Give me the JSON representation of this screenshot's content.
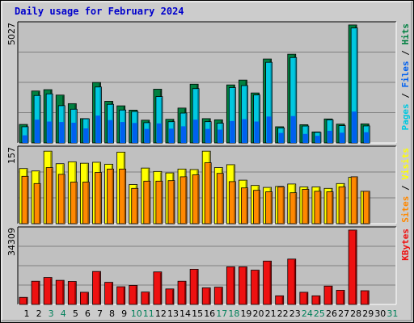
{
  "chart_data": {
    "type": "bar",
    "title": "Daily usage for February 2024",
    "categories": [
      "1",
      "2",
      "3",
      "4",
      "5",
      "6",
      "7",
      "8",
      "9",
      "10",
      "11",
      "12",
      "13",
      "14",
      "15",
      "16",
      "17",
      "18",
      "19",
      "20",
      "21",
      "22",
      "23",
      "24",
      "25",
      "26",
      "27",
      "28",
      "29",
      "30",
      "31"
    ],
    "weekend_days": [
      "3",
      "4",
      "10",
      "11",
      "17",
      "18",
      "24",
      "25",
      "31"
    ],
    "colors": {
      "hits": "#008040",
      "files": "#00c8e0",
      "pages": "#0060f0",
      "visits": "#ffff00",
      "sites": "#ff8800",
      "kbytes": "#ee1111",
      "weekday_label": "#000000",
      "weekend_label": "#00805a",
      "panel_bg": "#c0c0c0",
      "title": "#0000cc"
    },
    "panels": [
      {
        "name": "pages-files-hits",
        "ymax_label": "5027",
        "ymax": 5027,
        "legend": [
          {
            "text": "Pages",
            "color": "#00c8e0"
          },
          {
            "text": " / ",
            "color": "#000000"
          },
          {
            "text": "Files",
            "color": "#0060f0"
          },
          {
            "text": " / ",
            "color": "#000000"
          },
          {
            "text": "Hits",
            "color": "#008040"
          }
        ],
        "series": [
          {
            "name": "Hits",
            "values": [
              778,
              2184,
              2241,
              2013,
              1652,
              1023,
              2544,
              1750,
              1560,
              1380,
              957,
              2260,
              994,
              1466,
              2471,
              1022,
              973,
              2440,
              2644,
              2102,
              3530,
              680,
              3732,
              766,
              462,
              1009,
              791,
              4962,
              801,
              null,
              null
            ]
          },
          {
            "name": "Files",
            "values": [
              681,
              1995,
              2063,
              1566,
              1417,
              1015,
              2352,
              1622,
              1384,
              1322,
              852,
              1949,
              892,
              1256,
              2284,
              894,
              828,
              2327,
              2412,
              2018,
              3390,
              631,
              3591,
              711,
              446,
              970,
              728,
              4834,
              715,
              null,
              null
            ]
          },
          {
            "name": "Pages",
            "values": [
              320,
              980,
              900,
              880,
              850,
              610,
              1150,
              960,
              880,
              840,
              590,
              820,
              600,
              700,
              980,
              590,
              560,
              920,
              1000,
              900,
              1110,
              420,
              1130,
              380,
              300,
              510,
              430,
              1320,
              450,
              null,
              null
            ]
          }
        ]
      },
      {
        "name": "visits-sites",
        "ymax_label": "157",
        "ymax": 157,
        "legend": [
          {
            "text": "Sites",
            "color": "#ff8800"
          },
          {
            "text": " / ",
            "color": "#000000"
          },
          {
            "text": "Visits",
            "color": "#ffff00"
          }
        ],
        "series": [
          {
            "name": "Visits",
            "values": [
              114,
              109,
              150,
              124,
              128,
              125,
              127,
              123,
              148,
              81,
              115,
              108,
              105,
              113,
              112,
              150,
              116,
              122,
              90,
              79,
              75,
              77,
              82,
              76,
              76,
              73,
              83,
              96,
              67,
              null,
              null
            ]
          },
          {
            "name": "Sites",
            "values": [
              98,
              83,
              116,
              102,
              86,
              86,
              106,
              113,
              113,
              73,
              88,
              88,
              89,
              97,
              101,
              126,
              104,
              87,
              74,
              69,
              66,
              76,
              64,
              71,
              67,
              66,
              76,
              97,
              67,
              null,
              null
            ]
          }
        ]
      },
      {
        "name": "kbytes",
        "ymax_label": "34309",
        "ymax": 34309,
        "legend": [
          {
            "text": "KBytes",
            "color": "#ee1111"
          }
        ],
        "series": [
          {
            "name": "KBytes",
            "values": [
              3200,
              10500,
              12200,
              10900,
              10400,
              5500,
              14900,
              10000,
              8000,
              8600,
              5600,
              14700,
              7000,
              10500,
              15900,
              7500,
              7800,
              17000,
              17000,
              15500,
              19600,
              3900,
              20500,
              5500,
              3900,
              8300,
              6400,
              33600,
              6200,
              null,
              null
            ]
          }
        ]
      }
    ]
  }
}
